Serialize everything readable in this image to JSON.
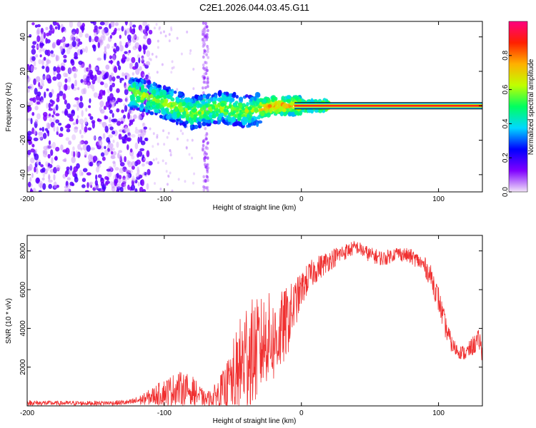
{
  "title": "C2E1.2026.044.03.45.G11",
  "colors": {
    "snr_line": "#f03030",
    "axis": "#000000",
    "background": "#ffffff"
  },
  "chart_data": [
    {
      "type": "heatmap",
      "xlabel": "Height of straight line (km)",
      "ylabel": "Frequency (Hz)",
      "xlim": [
        -200,
        132
      ],
      "ylim": [
        -50,
        49
      ],
      "x_ticks": [
        -200,
        -100,
        0,
        100
      ],
      "x_tick_labels": [
        "-200",
        "-100",
        "0",
        "100"
      ],
      "y_ticks": [
        -40,
        -20,
        0,
        20,
        40
      ],
      "y_tick_labels": [
        "-40",
        "-20",
        "0",
        "20",
        "40"
      ],
      "colorbar": {
        "label": "Normalized spectral amplitude",
        "range": [
          0,
          1
        ],
        "ticks": [
          0.0,
          0.2,
          0.4,
          0.6,
          0.8
        ],
        "tick_labels": [
          "0.0",
          "0.2",
          "0.4",
          "0.6",
          "0.8"
        ],
        "colormap": [
          "#f2e4f8",
          "#8000ff",
          "#0000ff",
          "#00d8ff",
          "#00ff60",
          "#c0ff00",
          "#ffb000",
          "#ff2000",
          "#ff0080"
        ]
      },
      "features": [
        {
          "name": "noise field",
          "x_range": [
            -200,
            -110
          ],
          "y_range": [
            -50,
            49
          ],
          "amplitude": 0.1
        },
        {
          "name": "vertical streak",
          "x": -70,
          "y_range": [
            -50,
            49
          ],
          "amplitude": 0.05
        },
        {
          "name": "signal ridge",
          "x_range": [
            -125,
            20
          ],
          "y_center": [
            [
              -125,
              8
            ],
            [
              -100,
              2
            ],
            [
              -80,
              -4
            ],
            [
              -60,
              -1
            ],
            [
              -40,
              -3
            ],
            [
              -20,
              0
            ],
            [
              0,
              0
            ],
            [
              20,
              0
            ]
          ]
        },
        {
          "name": "carrier line",
          "x_range": [
            20,
            132
          ],
          "y": 0,
          "amplitude": 1.0
        }
      ]
    },
    {
      "type": "line",
      "xlabel": "Height of straight line (km)",
      "ylabel": "SNR (10 * v/v)",
      "xlim": [
        -200,
        132
      ],
      "ylim": [
        0,
        8800
      ],
      "x_ticks": [
        -200,
        -100,
        0,
        100
      ],
      "x_tick_labels": [
        "-200",
        "-100",
        "0",
        "100"
      ],
      "y_ticks": [
        2000,
        4000,
        6000,
        8000
      ],
      "y_tick_labels": [
        "2000",
        "4000",
        "6000",
        "8000"
      ],
      "series": [
        {
          "name": "SNR",
          "envelope": {
            "x": [
              -200,
              -180,
              -160,
              -140,
              -125,
              -115,
              -100,
              -90,
              -80,
              -70,
              -65,
              -55,
              -50,
              -45,
              -40,
              -35,
              -30,
              -25,
              -20,
              -15,
              -10,
              -5,
              0,
              5,
              10,
              20,
              30,
              40,
              50,
              60,
              70,
              80,
              85,
              90,
              95,
              100,
              105,
              110,
              115,
              120,
              125,
              130,
              132
            ],
            "mean": [
              150,
              140,
              140,
              150,
              180,
              350,
              700,
              900,
              800,
              300,
              400,
              900,
              1400,
              1900,
              2600,
              2700,
              3000,
              3600,
              3300,
              3800,
              4400,
              5200,
              6000,
              6600,
              7000,
              7500,
              7900,
              8200,
              7800,
              7600,
              7900,
              7700,
              7500,
              7200,
              6600,
              5500,
              4100,
              3100,
              2800,
              2700,
              3100,
              3400,
              2600
            ],
            "spread": [
              150,
              120,
              120,
              120,
              150,
              300,
              700,
              900,
              800,
              400,
              500,
              1200,
              2000,
              2600,
              3200,
              2800,
              2600,
              2400,
              2200,
              2100,
              1800,
              1300,
              900,
              800,
              700,
              550,
              450,
              350,
              400,
              400,
              350,
              400,
              400,
              500,
              600,
              700,
              600,
              450,
              350,
              400,
              500,
              600,
              500
            ]
          }
        }
      ]
    }
  ]
}
